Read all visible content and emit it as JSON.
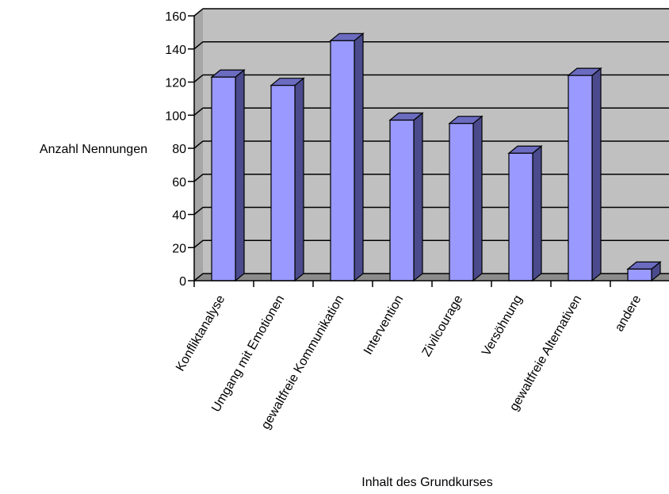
{
  "chart_data": {
    "type": "bar",
    "title": "",
    "xlabel": "Inhalt des Grundkurses",
    "ylabel": "Anzahl Nennungen",
    "ylim": [
      0,
      160
    ],
    "yticks": [
      0,
      20,
      40,
      60,
      80,
      100,
      120,
      140,
      160
    ],
    "grid": true,
    "legend": "none",
    "categories": [
      "Konfliktanalyse",
      "Umgang mit Emotionen",
      "gewaltfreie Kommunikation",
      "Intervention",
      "Zivilcourage",
      "Versöhnung",
      "gewaltfreie Alternativen",
      "andere"
    ],
    "values": [
      123,
      118,
      145,
      97,
      95,
      77,
      124,
      7
    ],
    "colors": {
      "bar_front": "#9999ff",
      "bar_side": "#4a4a8c",
      "bar_top": "#6b6bc0",
      "plot_back": "#c0c0c0",
      "plot_side": "#a6a6a6",
      "plot_floor": "#8c8c8c",
      "gridline": "#000000"
    }
  }
}
